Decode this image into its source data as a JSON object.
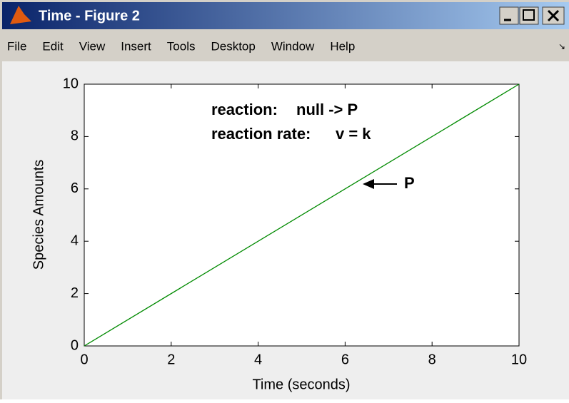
{
  "window": {
    "title": "Time - Figure 2",
    "menu": [
      "File",
      "Edit",
      "View",
      "Insert",
      "Tools",
      "Desktop",
      "Window",
      "Help"
    ]
  },
  "chart_data": {
    "type": "line",
    "x": [
      0,
      10
    ],
    "values": [
      0,
      10
    ],
    "color": "#008a00",
    "xlabel": "Time (seconds)",
    "ylabel": "Species Amounts",
    "xlim": [
      0,
      10
    ],
    "ylim": [
      0,
      10
    ],
    "xticks": [
      0,
      2,
      4,
      6,
      8,
      10
    ],
    "yticks": [
      0,
      2,
      4,
      6,
      8,
      10
    ],
    "annotations": [
      "reaction:",
      "null -> P",
      "reaction rate:",
      "v = k",
      "P"
    ]
  }
}
